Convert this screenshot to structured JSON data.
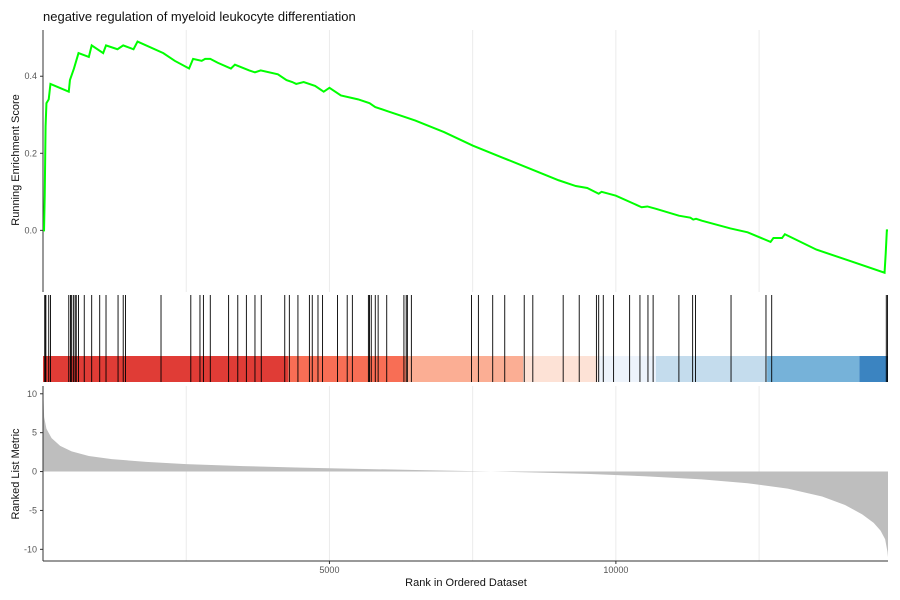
{
  "chart_data": {
    "type": "line",
    "title": "negative regulation of myeloid leukocyte differentiation",
    "running_es": {
      "ylabel": "Running Enrichment Score",
      "yticks": [
        0.0,
        0.2,
        0.4
      ],
      "ytick_labels": [
        "0.0",
        "0.2",
        "0.4"
      ],
      "ylim": [
        -0.16,
        0.52
      ],
      "line_color": "#00ff00",
      "points": [
        [
          0,
          0
        ],
        [
          18,
          0
        ],
        [
          30,
          0.09
        ],
        [
          45,
          0.27
        ],
        [
          60,
          0.33
        ],
        [
          100,
          0.34
        ],
        [
          130,
          0.38
        ],
        [
          450,
          0.36
        ],
        [
          470,
          0.39
        ],
        [
          540,
          0.42
        ],
        [
          580,
          0.44
        ],
        [
          620,
          0.46
        ],
        [
          800,
          0.45
        ],
        [
          850,
          0.48
        ],
        [
          1050,
          0.46
        ],
        [
          1100,
          0.48
        ],
        [
          1300,
          0.47
        ],
        [
          1400,
          0.48
        ],
        [
          1580,
          0.47
        ],
        [
          1650,
          0.49
        ],
        [
          2100,
          0.46
        ],
        [
          2300,
          0.44
        ],
        [
          2550,
          0.42
        ],
        [
          2620,
          0.445
        ],
        [
          2770,
          0.44
        ],
        [
          2830,
          0.445
        ],
        [
          2920,
          0.445
        ],
        [
          3050,
          0.435
        ],
        [
          3280,
          0.42
        ],
        [
          3350,
          0.43
        ],
        [
          3600,
          0.415
        ],
        [
          3700,
          0.41
        ],
        [
          3800,
          0.415
        ],
        [
          4100,
          0.405
        ],
        [
          4250,
          0.39
        ],
        [
          4350,
          0.385
        ],
        [
          4420,
          0.38
        ],
        [
          4550,
          0.385
        ],
        [
          4750,
          0.375
        ],
        [
          4900,
          0.36
        ],
        [
          5000,
          0.37
        ],
        [
          5200,
          0.35
        ],
        [
          5500,
          0.34
        ],
        [
          5700,
          0.33
        ],
        [
          5800,
          0.32
        ],
        [
          6000,
          0.31
        ],
        [
          6300,
          0.295
        ],
        [
          6500,
          0.285
        ],
        [
          7000,
          0.255
        ],
        [
          7500,
          0.22
        ],
        [
          8000,
          0.19
        ],
        [
          8500,
          0.16
        ],
        [
          9000,
          0.13
        ],
        [
          9300,
          0.115
        ],
        [
          9500,
          0.11
        ],
        [
          9700,
          0.095
        ],
        [
          9750,
          0.1
        ],
        [
          10000,
          0.09
        ],
        [
          10300,
          0.07
        ],
        [
          10450,
          0.06
        ],
        [
          10550,
          0.062
        ],
        [
          10700,
          0.056
        ],
        [
          11100,
          0.038
        ],
        [
          11300,
          0.033
        ],
        [
          11350,
          0.028
        ],
        [
          11400,
          0.03
        ],
        [
          11500,
          0.025
        ],
        [
          12000,
          0.005
        ],
        [
          12300,
          -0.005
        ],
        [
          12700,
          -0.03
        ],
        [
          12750,
          -0.02
        ],
        [
          12900,
          -0.02
        ],
        [
          12950,
          -0.01
        ],
        [
          13500,
          -0.05
        ],
        [
          14100,
          -0.08
        ],
        [
          14690,
          -0.11
        ],
        [
          14710,
          -0.06
        ],
        [
          14730,
          0
        ],
        [
          14750,
          0
        ]
      ]
    },
    "gene_hits": {
      "positions": [
        30,
        45,
        50,
        100,
        130,
        450,
        480,
        500,
        530,
        560,
        580,
        620,
        720,
        850,
        990,
        1100,
        1310,
        1400,
        1440,
        2060,
        2580,
        2740,
        2800,
        2920,
        3240,
        3400,
        3550,
        3700,
        3810,
        4220,
        4300,
        4450,
        4650,
        4700,
        4800,
        4880,
        5140,
        5310,
        5400,
        5680,
        5700,
        5730,
        5800,
        5850,
        6000,
        6300,
        6340,
        6360,
        6430,
        7480,
        7600,
        7850,
        8060,
        8400,
        8550,
        9080,
        9360,
        9660,
        9700,
        9780,
        9960,
        10240,
        10420,
        10560,
        10650,
        11100,
        11340,
        11390,
        12010,
        12620,
        12720,
        14720,
        14740
      ],
      "color_bands": [
        {
          "color": "#e03c36",
          "start": 0,
          "end": 4280
        },
        {
          "color": "#f86e55",
          "start": 4280,
          "end": 6330
        },
        {
          "color": "#fbae94",
          "start": 6330,
          "end": 8380
        },
        {
          "color": "#fde2d6",
          "start": 8380,
          "end": 9680
        },
        {
          "color": "#edf3fb",
          "start": 9680,
          "end": 10700
        },
        {
          "color": "#c4dced",
          "start": 10700,
          "end": 12640
        },
        {
          "color": "#76b2d9",
          "start": 12640,
          "end": 14250
        },
        {
          "color": "#3b84c1",
          "start": 14250,
          "end": 14750
        }
      ]
    },
    "ranked_metric": {
      "ylabel": "Ranked List Metric",
      "yticks": [
        10,
        5,
        0,
        -5,
        -10
      ],
      "ytick_labels": [
        "10",
        "5",
        "0",
        "-5",
        "-10"
      ],
      "ylim": [
        -11.5,
        11
      ],
      "fill_color": "#bebebe",
      "curve": [
        [
          0,
          11
        ],
        [
          20,
          7
        ],
        [
          60,
          5.5
        ],
        [
          150,
          4.3
        ],
        [
          300,
          3.3
        ],
        [
          500,
          2.6
        ],
        [
          800,
          2.0
        ],
        [
          1200,
          1.6
        ],
        [
          1800,
          1.25
        ],
        [
          2500,
          0.95
        ],
        [
          3500,
          0.7
        ],
        [
          4500,
          0.5
        ],
        [
          5500,
          0.35
        ],
        [
          6500,
          0.2
        ],
        [
          7500,
          0.05
        ],
        [
          8500,
          -0.1
        ],
        [
          9500,
          -0.3
        ],
        [
          10500,
          -0.6
        ],
        [
          11500,
          -1.0
        ],
        [
          12300,
          -1.5
        ],
        [
          13000,
          -2.2
        ],
        [
          13600,
          -3.2
        ],
        [
          14000,
          -4.3
        ],
        [
          14300,
          -5.5
        ],
        [
          14500,
          -6.6
        ],
        [
          14620,
          -7.6
        ],
        [
          14700,
          -8.7
        ],
        [
          14740,
          -10.3
        ],
        [
          14750,
          -11
        ]
      ]
    },
    "x_axis": {
      "xlabel": "Rank in Ordered Dataset",
      "xticks": [
        5000,
        10000
      ],
      "xtick_labels": [
        "5000",
        "10000"
      ],
      "minor_gridlines": [
        2500,
        7500,
        12500
      ],
      "xlim": [
        0,
        14750
      ]
    },
    "grid": true
  }
}
